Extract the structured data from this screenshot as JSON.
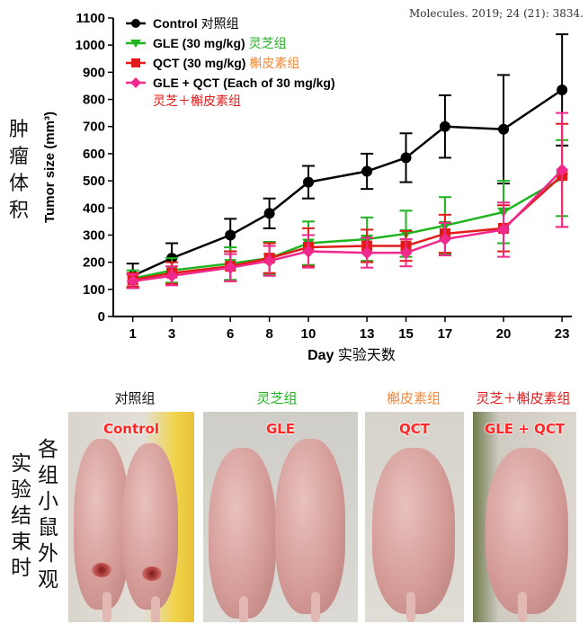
{
  "citation": "Molecules. 2019; 24 (21): 3834.",
  "chart_data": {
    "type": "line",
    "x": [
      1,
      3,
      6,
      8,
      10,
      13,
      15,
      17,
      20,
      23
    ],
    "xticks": [
      "1",
      "3",
      "6",
      "8",
      "10",
      "13",
      "15",
      "17",
      "20",
      "23"
    ],
    "xlabel_en": "Day",
    "xlabel_cn": "实验天数",
    "ylabel": "Tumor size (mm³)",
    "ylim": [
      0,
      1100
    ],
    "yticks": [
      "0",
      "100",
      "200",
      "300",
      "400",
      "500",
      "600",
      "700",
      "800",
      "900",
      "1000",
      "1100"
    ],
    "side_label": "肿瘤体积",
    "series": [
      {
        "name": "Control",
        "name_cn": "对照组",
        "color": "#000000",
        "marker": "circle",
        "values": [
          150,
          215,
          300,
          380,
          495,
          535,
          585,
          700,
          690,
          835
        ],
        "errors": [
          45,
          55,
          60,
          55,
          60,
          65,
          90,
          115,
          200,
          205
        ]
      },
      {
        "name": "GLE (30 mg/kg)",
        "name_cn": "灵芝组",
        "color": "#1fb41f",
        "marker": "triangle",
        "values": [
          140,
          170,
          195,
          215,
          270,
          285,
          305,
          335,
          385,
          510
        ],
        "errors": [
          30,
          45,
          60,
          60,
          80,
          80,
          85,
          105,
          115,
          140
        ]
      },
      {
        "name": "QCT (30 mg/kg)",
        "name_cn": "槲皮素组",
        "color": "#e31a1a",
        "marker": "square",
        "values": [
          135,
          160,
          185,
          215,
          255,
          260,
          260,
          305,
          325,
          520
        ],
        "errors": [
          25,
          40,
          55,
          55,
          70,
          60,
          55,
          70,
          85,
          190
        ]
      },
      {
        "name": "GLE + QCT (Each of 30 mg/kg)",
        "name_cn": "灵芝＋槲皮素组",
        "color": "#ef2a8c",
        "marker": "diamond",
        "values": [
          130,
          150,
          180,
          205,
          240,
          235,
          235,
          285,
          320,
          540
        ],
        "errors": [
          25,
          35,
          50,
          55,
          60,
          55,
          50,
          60,
          100,
          210
        ]
      }
    ]
  },
  "photo_section": {
    "side_label_1": "各组小鼠外观",
    "side_label_2": "实验结束时",
    "groups": [
      {
        "heading": "对照组",
        "heading_color": "#111111",
        "label": "Control"
      },
      {
        "heading": "灵芝组",
        "heading_color": "#1fb41f",
        "label": "GLE"
      },
      {
        "heading": "槲皮素组",
        "heading_color": "#ef8a3c",
        "label": "QCT"
      },
      {
        "heading": "灵芝＋槲皮素组",
        "heading_color": "#e31a1a",
        "label": "GLE + QCT"
      }
    ]
  }
}
